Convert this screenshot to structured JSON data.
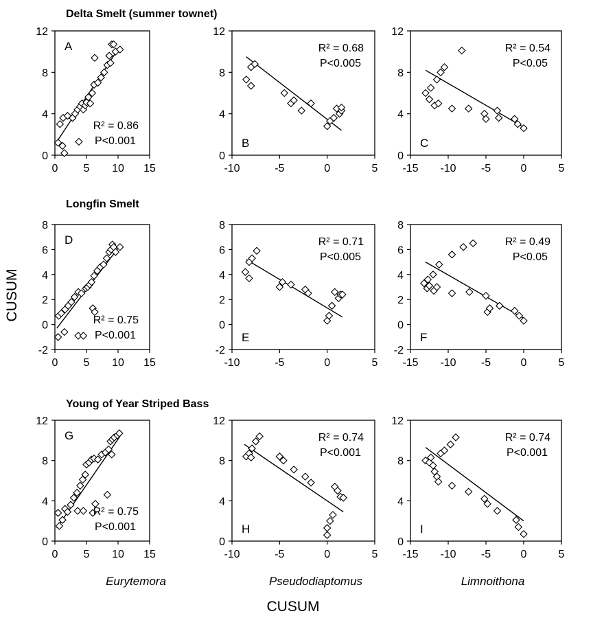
{
  "figure": {
    "row_titles": [
      "Delta Smelt (summer townet)",
      "Longfin Smelt",
      "Young of Year Striped Bass"
    ],
    "column_xlabels": [
      "Eurytemora",
      "Pseudodiaptomus",
      "Limnoithona"
    ],
    "y_title": "CUSUM",
    "x_title": "CUSUM"
  },
  "chart_data": [
    {
      "type": "scatter",
      "panel": "A",
      "stats": [
        "R² = 0.86",
        "P<0.001"
      ],
      "xlim": [
        0,
        15
      ],
      "ylim": [
        0,
        12
      ],
      "xticks": [
        0,
        5,
        10,
        15
      ],
      "yticks": [
        0,
        4,
        8,
        12
      ],
      "trend_line": [
        [
          0.3,
          1.3
        ],
        [
          10.3,
          10.5
        ]
      ],
      "points": [
        [
          0.5,
          1.2
        ],
        [
          0.8,
          3.0
        ],
        [
          1.2,
          0.9
        ],
        [
          1.3,
          3.6
        ],
        [
          1.5,
          0.2
        ],
        [
          2.0,
          3.8
        ],
        [
          2.8,
          3.6
        ],
        [
          3.2,
          4.0
        ],
        [
          3.6,
          4.4
        ],
        [
          3.8,
          1.3
        ],
        [
          4.0,
          4.7
        ],
        [
          4.3,
          5.0
        ],
        [
          4.5,
          4.4
        ],
        [
          4.8,
          4.8
        ],
        [
          5.0,
          5.1
        ],
        [
          5.3,
          5.6
        ],
        [
          5.6,
          5.0
        ],
        [
          5.9,
          6.0
        ],
        [
          6.2,
          6.8
        ],
        [
          6.3,
          9.4
        ],
        [
          6.8,
          7.0
        ],
        [
          7.3,
          7.5
        ],
        [
          7.8,
          8.0
        ],
        [
          8.3,
          8.7
        ],
        [
          8.6,
          9.6
        ],
        [
          8.8,
          8.9
        ],
        [
          9.0,
          10.7
        ],
        [
          9.3,
          10.7
        ],
        [
          9.6,
          10.0
        ],
        [
          10.3,
          10.2
        ]
      ]
    },
    {
      "type": "scatter",
      "panel": "B",
      "stats": [
        "R² = 0.68",
        "P<0.005"
      ],
      "xlim": [
        -10,
        5
      ],
      "ylim": [
        0,
        12
      ],
      "xticks": [
        -10,
        -5,
        0,
        5
      ],
      "yticks": [
        0,
        4,
        8,
        12
      ],
      "trend_line": [
        [
          -8.5,
          9.5
        ],
        [
          1.5,
          2.4
        ]
      ],
      "points": [
        [
          -8.5,
          7.3
        ],
        [
          -8.0,
          6.7
        ],
        [
          -8.0,
          8.5
        ],
        [
          -7.6,
          8.8
        ],
        [
          -4.5,
          6.0
        ],
        [
          -3.8,
          5.0
        ],
        [
          -3.5,
          5.3
        ],
        [
          -2.7,
          4.3
        ],
        [
          -1.7,
          5.0
        ],
        [
          0.0,
          2.8
        ],
        [
          0.3,
          3.3
        ],
        [
          0.7,
          3.6
        ],
        [
          1.0,
          4.5
        ],
        [
          1.3,
          4.0
        ],
        [
          1.5,
          4.3
        ],
        [
          1.5,
          4.6
        ]
      ]
    },
    {
      "type": "scatter",
      "panel": "C",
      "stats": [
        "R² = 0.54",
        "P<0.05"
      ],
      "xlim": [
        -15,
        5
      ],
      "ylim": [
        0,
        12
      ],
      "xticks": [
        -15,
        -10,
        -5,
        0,
        5
      ],
      "yticks": [
        0,
        4,
        8,
        12
      ],
      "trend_line": [
        [
          -13.0,
          8.2
        ],
        [
          0.0,
          2.7
        ]
      ],
      "points": [
        [
          -13.0,
          6.0
        ],
        [
          -12.5,
          5.4
        ],
        [
          -12.3,
          6.5
        ],
        [
          -11.8,
          4.8
        ],
        [
          -11.5,
          7.3
        ],
        [
          -11.3,
          5.0
        ],
        [
          -11.0,
          8.0
        ],
        [
          -10.5,
          8.5
        ],
        [
          -9.5,
          4.5
        ],
        [
          -8.2,
          10.1
        ],
        [
          -7.3,
          4.5
        ],
        [
          -5.2,
          4.0
        ],
        [
          -5.0,
          3.5
        ],
        [
          -3.5,
          4.3
        ],
        [
          -3.3,
          3.6
        ],
        [
          -1.2,
          3.5
        ],
        [
          -0.8,
          3.0
        ],
        [
          0.0,
          2.6
        ]
      ]
    },
    {
      "type": "scatter",
      "panel": "D",
      "stats": [
        "R² = 0.75",
        "P<0.001"
      ],
      "xlim": [
        0,
        15
      ],
      "ylim": [
        -2,
        8
      ],
      "xticks": [
        0,
        5,
        10,
        15
      ],
      "yticks": [
        -2,
        0,
        2,
        4,
        6,
        8
      ],
      "trend_line": [
        [
          0.3,
          -0.3
        ],
        [
          10.3,
          6.3
        ]
      ],
      "points": [
        [
          0.5,
          -1.0
        ],
        [
          0.6,
          0.7
        ],
        [
          1.0,
          0.9
        ],
        [
          1.5,
          -0.6
        ],
        [
          1.6,
          1.2
        ],
        [
          2.1,
          1.5
        ],
        [
          2.6,
          1.8
        ],
        [
          3.1,
          2.2
        ],
        [
          3.7,
          2.6
        ],
        [
          3.7,
          -0.9
        ],
        [
          4.2,
          2.5
        ],
        [
          4.5,
          -0.9
        ],
        [
          4.9,
          2.9
        ],
        [
          5.2,
          3.0
        ],
        [
          5.5,
          3.2
        ],
        [
          5.8,
          3.4
        ],
        [
          6.0,
          1.3
        ],
        [
          6.2,
          3.9
        ],
        [
          6.3,
          1.0
        ],
        [
          6.7,
          4.3
        ],
        [
          7.2,
          4.6
        ],
        [
          7.7,
          4.8
        ],
        [
          8.2,
          5.3
        ],
        [
          8.6,
          5.8
        ],
        [
          8.9,
          6.0
        ],
        [
          9.1,
          6.4
        ],
        [
          9.3,
          6.2
        ],
        [
          9.6,
          5.8
        ],
        [
          10.3,
          6.2
        ]
      ]
    },
    {
      "type": "scatter",
      "panel": "E",
      "stats": [
        "R² = 0.71",
        "P<0.005"
      ],
      "xlim": [
        -10,
        5
      ],
      "ylim": [
        -2,
        8
      ],
      "xticks": [
        -10,
        -5,
        0,
        5
      ],
      "yticks": [
        -2,
        0,
        2,
        4,
        6,
        8
      ],
      "trend_line": [
        [
          -8.5,
          5.2
        ],
        [
          1.6,
          0.6
        ]
      ],
      "points": [
        [
          -8.6,
          4.2
        ],
        [
          -8.2,
          3.7
        ],
        [
          -8.2,
          5.0
        ],
        [
          -7.9,
          5.3
        ],
        [
          -7.4,
          5.9
        ],
        [
          -5.0,
          3.0
        ],
        [
          -4.7,
          3.4
        ],
        [
          -3.8,
          3.2
        ],
        [
          -2.3,
          2.8
        ],
        [
          -2.0,
          2.5
        ],
        [
          0.0,
          0.3
        ],
        [
          0.2,
          0.7
        ],
        [
          0.5,
          1.5
        ],
        [
          0.8,
          2.6
        ],
        [
          1.2,
          2.1
        ],
        [
          1.4,
          2.4
        ],
        [
          1.6,
          2.4
        ]
      ]
    },
    {
      "type": "scatter",
      "panel": "F",
      "stats": [
        "R² = 0.49",
        "P<0.05"
      ],
      "xlim": [
        -15,
        5
      ],
      "ylim": [
        -2,
        8
      ],
      "xticks": [
        -15,
        -10,
        -5,
        0,
        5
      ],
      "yticks": [
        -2,
        0,
        2,
        4,
        6,
        8
      ],
      "trend_line": [
        [
          -13.0,
          5.0
        ],
        [
          0.0,
          0.5
        ]
      ],
      "points": [
        [
          -13.2,
          3.3
        ],
        [
          -12.8,
          2.9
        ],
        [
          -12.7,
          3.6
        ],
        [
          -12.5,
          3.1
        ],
        [
          -12.0,
          4.0
        ],
        [
          -11.9,
          2.7
        ],
        [
          -11.5,
          3.0
        ],
        [
          -11.2,
          4.8
        ],
        [
          -9.5,
          2.5
        ],
        [
          -9.5,
          5.6
        ],
        [
          -8.0,
          6.2
        ],
        [
          -6.7,
          6.5
        ],
        [
          -7.2,
          2.6
        ],
        [
          -5.0,
          2.3
        ],
        [
          -4.8,
          1.0
        ],
        [
          -4.5,
          1.3
        ],
        [
          -3.2,
          1.5
        ],
        [
          -1.2,
          1.1
        ],
        [
          -0.6,
          0.7
        ],
        [
          0.0,
          0.3
        ]
      ]
    },
    {
      "type": "scatter",
      "panel": "G",
      "stats": [
        "R² = 0.75",
        "P<0.001"
      ],
      "xlim": [
        0,
        15
      ],
      "ylim": [
        0,
        12
      ],
      "xticks": [
        0,
        5,
        10,
        15
      ],
      "yticks": [
        0,
        4,
        8,
        12
      ],
      "trend_line": [
        [
          0.3,
          1.3
        ],
        [
          10.3,
          10.4
        ]
      ],
      "points": [
        [
          0.5,
          2.8
        ],
        [
          0.7,
          1.5
        ],
        [
          1.2,
          2.1
        ],
        [
          1.6,
          3.2
        ],
        [
          2.0,
          2.9
        ],
        [
          2.5,
          3.6
        ],
        [
          3.0,
          4.3
        ],
        [
          3.5,
          4.8
        ],
        [
          3.6,
          3.0
        ],
        [
          4.0,
          5.5
        ],
        [
          4.4,
          6.1
        ],
        [
          4.5,
          3.0
        ],
        [
          4.8,
          6.6
        ],
        [
          5.0,
          7.6
        ],
        [
          5.4,
          7.8
        ],
        [
          5.8,
          8.1
        ],
        [
          6.0,
          2.8
        ],
        [
          6.2,
          8.2
        ],
        [
          6.4,
          3.7
        ],
        [
          6.8,
          8.1
        ],
        [
          7.4,
          8.6
        ],
        [
          8.0,
          8.8
        ],
        [
          8.3,
          4.6
        ],
        [
          8.5,
          9.1
        ],
        [
          8.8,
          9.9
        ],
        [
          9.0,
          8.6
        ],
        [
          9.1,
          10.1
        ],
        [
          9.4,
          10.3
        ],
        [
          9.9,
          10.5
        ],
        [
          10.2,
          10.7
        ]
      ]
    },
    {
      "type": "scatter",
      "panel": "H",
      "stats": [
        "R² = 0.74",
        "P<0.001"
      ],
      "xlim": [
        -10,
        5
      ],
      "ylim": [
        0,
        12
      ],
      "xticks": [
        -10,
        -5,
        0,
        5
      ],
      "yticks": [
        0,
        4,
        8,
        12
      ],
      "trend_line": [
        [
          -8.7,
          9.6
        ],
        [
          1.7,
          2.9
        ]
      ],
      "points": [
        [
          -8.5,
          8.4
        ],
        [
          -8.2,
          8.7
        ],
        [
          -8.0,
          8.3
        ],
        [
          -7.9,
          9.2
        ],
        [
          -7.5,
          9.9
        ],
        [
          -7.1,
          10.4
        ],
        [
          -5.0,
          8.4
        ],
        [
          -4.6,
          8.0
        ],
        [
          -3.5,
          7.1
        ],
        [
          -2.3,
          6.4
        ],
        [
          -1.7,
          5.8
        ],
        [
          0.0,
          0.6
        ],
        [
          0.0,
          1.3
        ],
        [
          0.3,
          2.0
        ],
        [
          0.6,
          2.6
        ],
        [
          0.8,
          5.4
        ],
        [
          1.1,
          5.0
        ],
        [
          1.4,
          4.4
        ],
        [
          1.7,
          4.3
        ]
      ]
    },
    {
      "type": "scatter",
      "panel": "I",
      "stats": [
        "R² = 0.74",
        "P<0.001"
      ],
      "xlim": [
        -15,
        5
      ],
      "ylim": [
        0,
        12
      ],
      "xticks": [
        -15,
        -10,
        -5,
        0,
        5
      ],
      "yticks": [
        0,
        4,
        8,
        12
      ],
      "trend_line": [
        [
          -13.0,
          9.3
        ],
        [
          0.0,
          2.0
        ]
      ],
      "points": [
        [
          -13.0,
          8.0
        ],
        [
          -12.5,
          7.8
        ],
        [
          -12.3,
          8.3
        ],
        [
          -12.0,
          7.5
        ],
        [
          -11.8,
          6.9
        ],
        [
          -11.5,
          6.4
        ],
        [
          -11.3,
          5.9
        ],
        [
          -11.0,
          8.7
        ],
        [
          -10.5,
          9.0
        ],
        [
          -9.7,
          9.6
        ],
        [
          -9.0,
          10.3
        ],
        [
          -9.5,
          5.5
        ],
        [
          -7.3,
          4.9
        ],
        [
          -5.2,
          4.2
        ],
        [
          -4.8,
          3.7
        ],
        [
          -3.5,
          3.0
        ],
        [
          -1.0,
          2.1
        ],
        [
          -0.7,
          1.4
        ],
        [
          0.0,
          0.7
        ]
      ]
    }
  ]
}
